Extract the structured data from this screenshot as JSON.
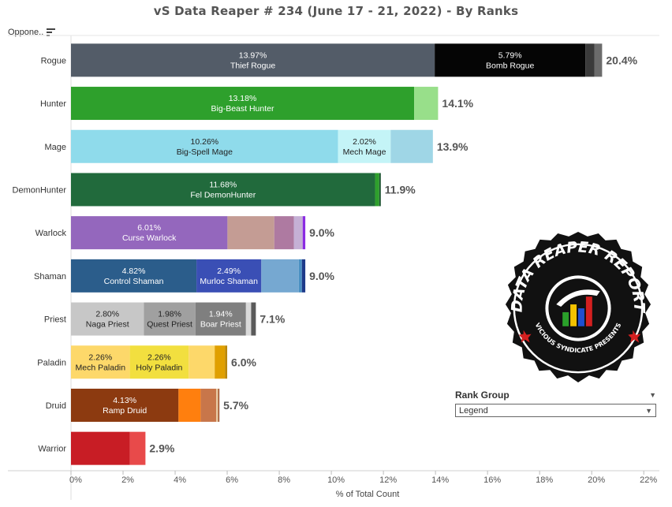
{
  "title": "vS Data Reaper #  234 (June 17 - 21, 2022) - By Ranks",
  "column_header": "Oppone..",
  "rank_filter": {
    "title": "Rank Group",
    "selected": "Legend"
  },
  "logo": {
    "text": "DATA REAPER REPORT",
    "subtext": "VICIOUS SYNDICATE PRESENTS"
  },
  "chart_data": {
    "type": "bar",
    "orientation": "horizontal",
    "stacked": true,
    "xlabel": "% of Total Count",
    "xlim": [
      0,
      22.6
    ],
    "xticks": [
      "0%",
      "2%",
      "4%",
      "6%",
      "8%",
      "10%",
      "12%",
      "14%",
      "16%",
      "18%",
      "20%",
      "22%"
    ],
    "grid": false,
    "categories": [
      "Rogue",
      "Hunter",
      "Mage",
      "DemonHunter",
      "Warlock",
      "Shaman",
      "Priest",
      "Paladin",
      "Druid",
      "Warrior"
    ],
    "totals": [
      "20.4%",
      "14.1%",
      "13.9%",
      "11.9%",
      "9.0%",
      "9.0%",
      "7.1%",
      "6.0%",
      "5.7%",
      "2.9%"
    ],
    "rows": [
      {
        "class": "Rogue",
        "segments": [
          {
            "value": 13.97,
            "color": "#535c68",
            "label": "13.97%",
            "name": "Thief Rogue"
          },
          {
            "value": 5.79,
            "color": "#050505",
            "label": "5.79%",
            "name": "Bomb Rogue"
          },
          {
            "value": 0.34,
            "color": "#3a3a3a"
          },
          {
            "value": 0.3,
            "color": "#6b6b6b"
          }
        ]
      },
      {
        "class": "Hunter",
        "segments": [
          {
            "value": 13.18,
            "color": "#2ea02c",
            "label": "13.18%",
            "name": "Big-Beast Hunter"
          },
          {
            "value": 0.92,
            "color": "#98df8a"
          }
        ]
      },
      {
        "class": "Mage",
        "segments": [
          {
            "value": 10.26,
            "color": "#8fdbeb",
            "label": "10.26%",
            "name": "Big-Spell Mage",
            "dark": true
          },
          {
            "value": 2.02,
            "color": "#c4f4f7",
            "label": "2.02%",
            "name": "Mech Mage",
            "dark": true
          },
          {
            "value": 1.62,
            "color": "#9fd6e6"
          }
        ]
      },
      {
        "class": "DemonHunter",
        "segments": [
          {
            "value": 11.68,
            "color": "#216a3c",
            "label": "11.68%",
            "name": "Fel DemonHunter"
          },
          {
            "value": 0.16,
            "color": "#2ea02c"
          },
          {
            "value": 0.06,
            "color": "#1c5530"
          }
        ]
      },
      {
        "class": "Warlock",
        "segments": [
          {
            "value": 6.01,
            "color": "#9467bd",
            "label": "6.01%",
            "name": "Curse Warlock"
          },
          {
            "value": 1.8,
            "color": "#c49c94"
          },
          {
            "value": 0.75,
            "color": "#ae7aa1"
          },
          {
            "value": 0.34,
            "color": "#c5b0d5"
          },
          {
            "value": 0.1,
            "color": "#8a2be2"
          }
        ]
      },
      {
        "class": "Shaman",
        "segments": [
          {
            "value": 4.82,
            "color": "#2b5d8b",
            "label": "4.82%",
            "name": "Control Shaman"
          },
          {
            "value": 2.49,
            "color": "#3a4fb5",
            "label": "2.49%",
            "name": "Murloc Shaman"
          },
          {
            "value": 1.44,
            "color": "#76a8d1"
          },
          {
            "value": 0.12,
            "color": "#4a90c2"
          },
          {
            "value": 0.13,
            "color": "#1e3a8a"
          }
        ]
      },
      {
        "class": "Priest",
        "segments": [
          {
            "value": 2.8,
            "color": "#c7c7c7",
            "label": "2.80%",
            "name": "Naga Priest",
            "dark": true
          },
          {
            "value": 1.98,
            "color": "#a0a0a0",
            "label": "1.98%",
            "name": "Quest Priest",
            "dark": true
          },
          {
            "value": 1.94,
            "color": "#7f7f7f",
            "label": "1.94%",
            "name": "Boar Priest"
          },
          {
            "value": 0.2,
            "color": "#d9d9d9"
          },
          {
            "value": 0.18,
            "color": "#5a5a5a"
          }
        ]
      },
      {
        "class": "Paladin",
        "segments": [
          {
            "value": 2.26,
            "color": "#fdd86a",
            "label": "2.26%",
            "name": "Mech Paladin",
            "dark": true
          },
          {
            "value": 2.26,
            "color": "#f2df3f",
            "label": "2.26%",
            "name": "Holy Paladin",
            "dark": true
          },
          {
            "value": 1.0,
            "color": "#fdd86a"
          },
          {
            "value": 0.4,
            "color": "#e0a000"
          },
          {
            "value": 0.08,
            "color": "#b8860b"
          }
        ]
      },
      {
        "class": "Druid",
        "segments": [
          {
            "value": 4.13,
            "color": "#8c3a10",
            "label": "4.13%",
            "name": "Ramp Druid"
          },
          {
            "value": 0.85,
            "color": "#ff7f0e"
          },
          {
            "value": 0.6,
            "color": "#c8764a"
          },
          {
            "value": 0.07,
            "color": "#e8c9a0"
          },
          {
            "value": 0.05,
            "color": "#a0522d"
          }
        ]
      },
      {
        "class": "Warrior",
        "segments": [
          {
            "value": 2.26,
            "color": "#c81d25"
          },
          {
            "value": 0.6,
            "color": "#e84a4a"
          }
        ]
      }
    ]
  }
}
